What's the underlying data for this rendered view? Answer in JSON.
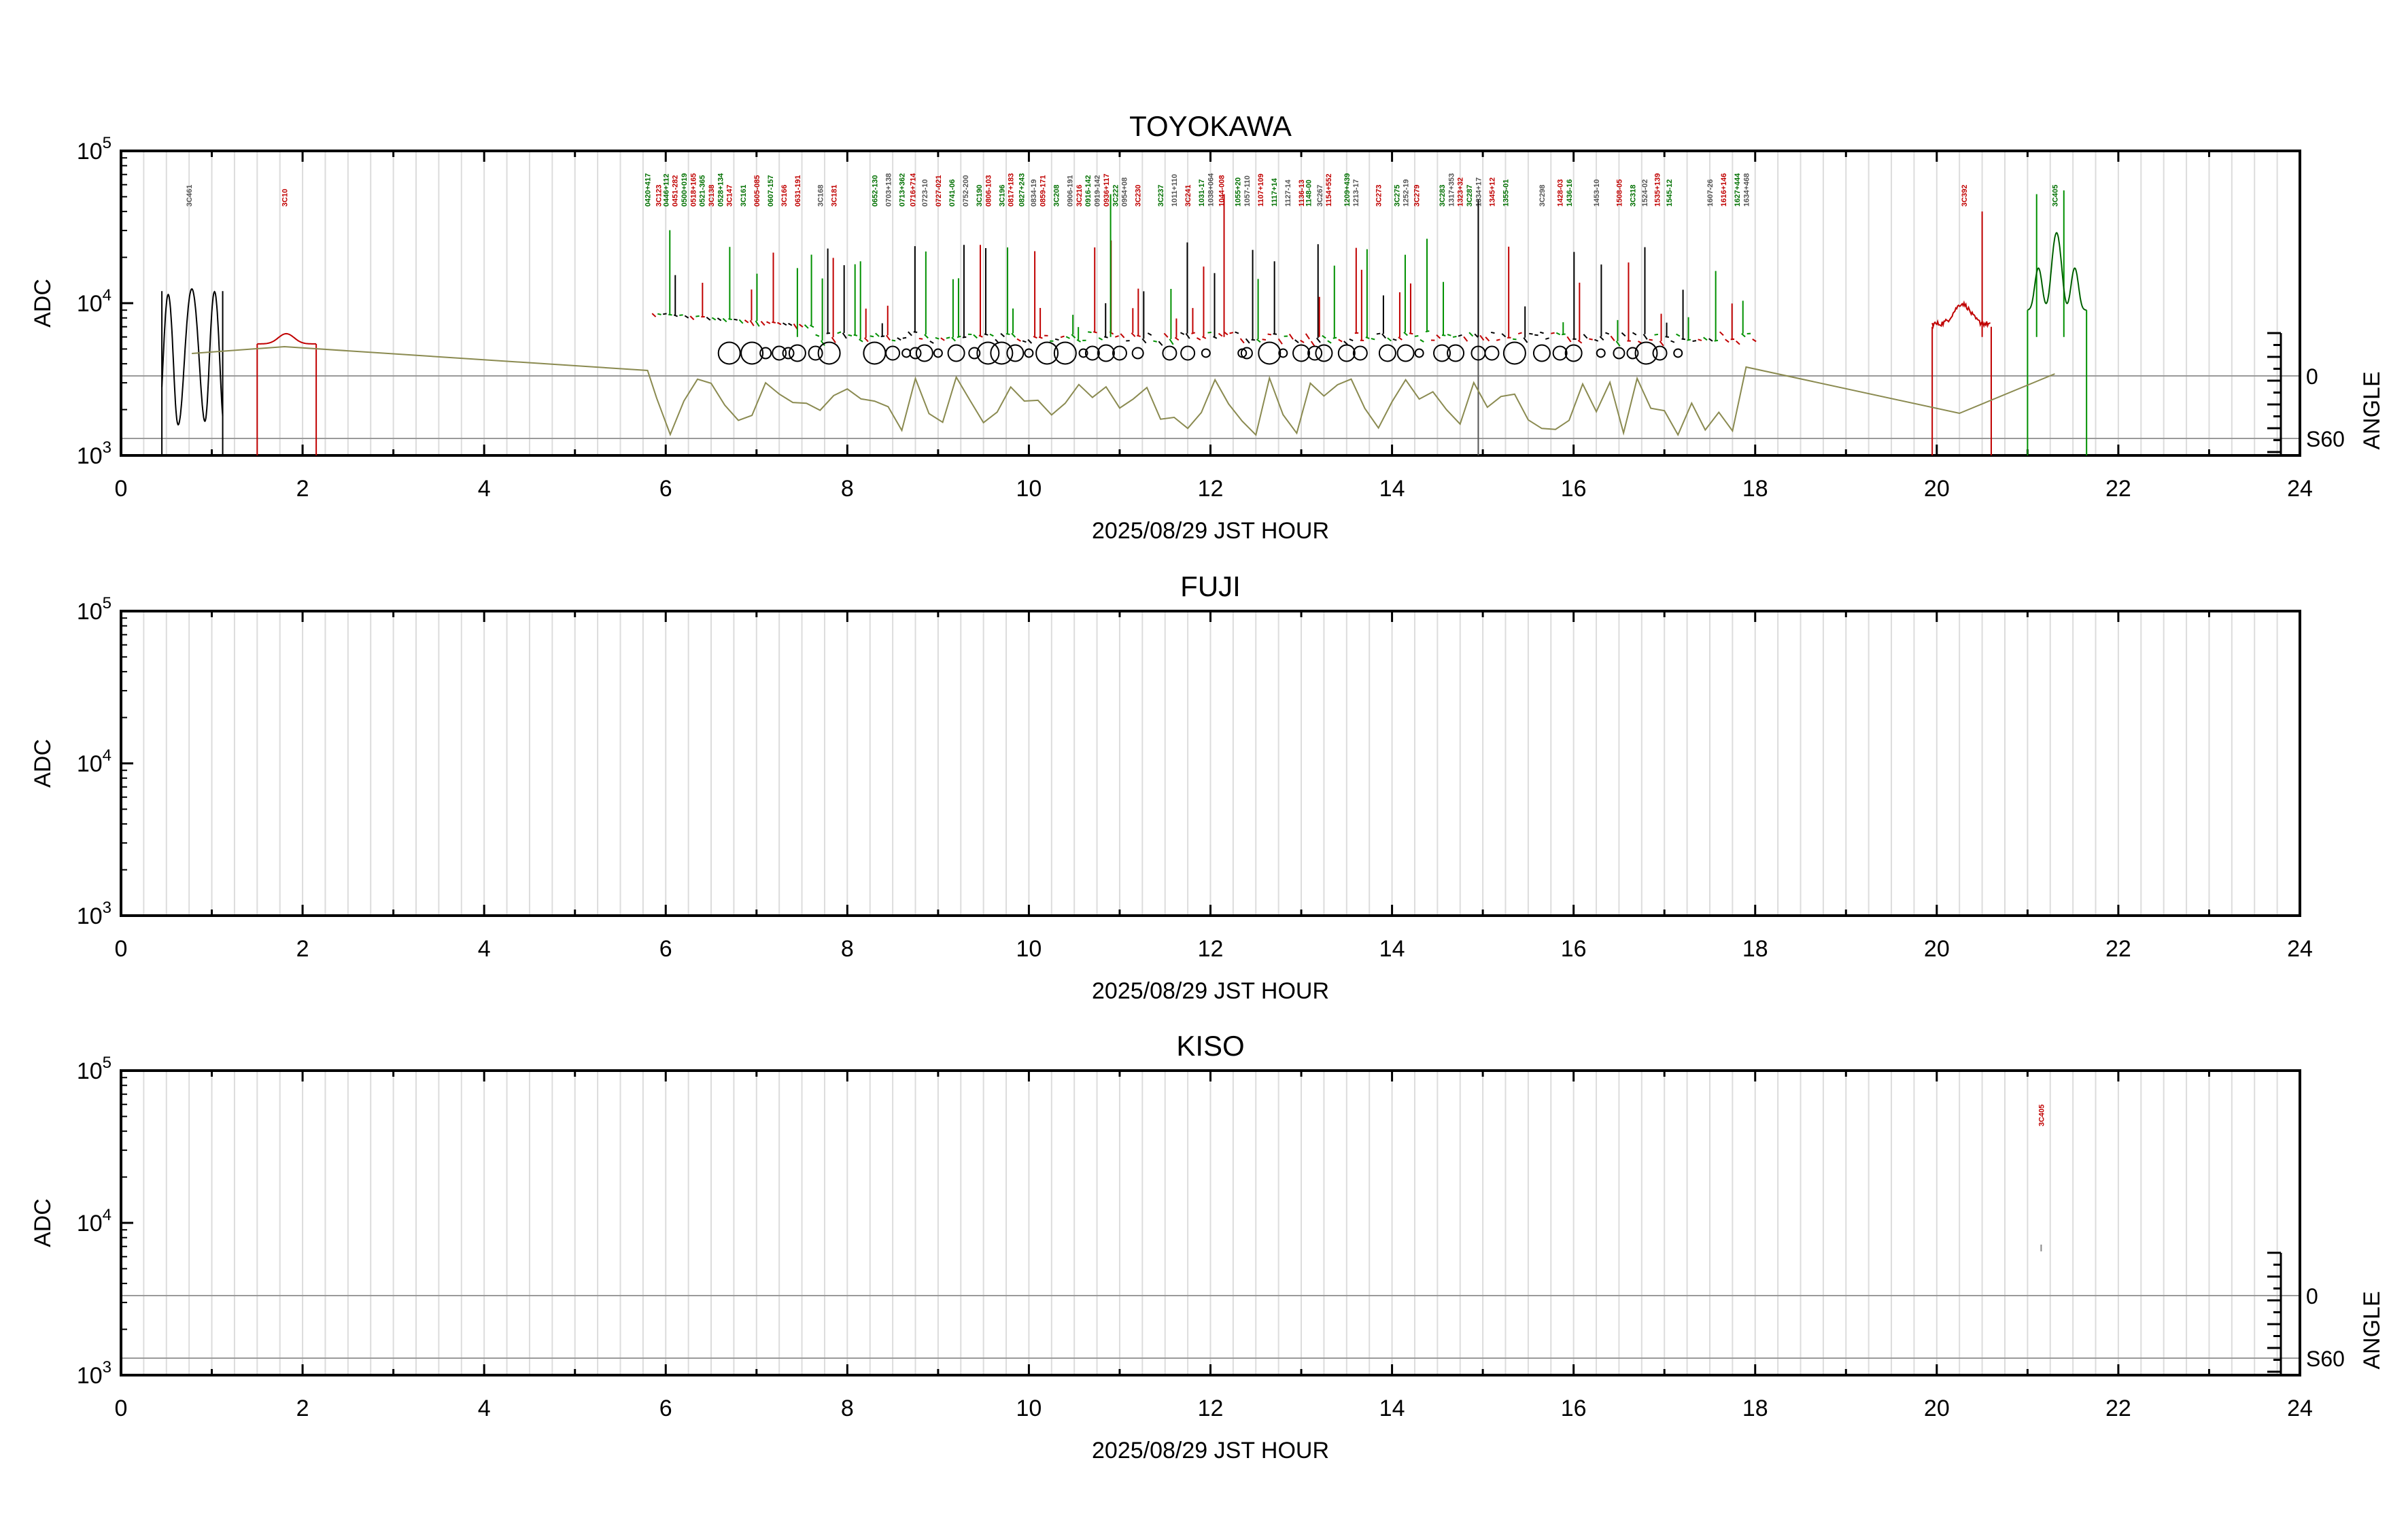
{
  "chart_data": [
    {
      "type": "line",
      "title": "TOYOKAWA",
      "xlabel": "2025/08/29 JST HOUR",
      "ylabel": "ADC",
      "right_label": "ANGLE",
      "right_ticks": [
        "0",
        "S60"
      ],
      "show_angle": true,
      "yscale": "log",
      "xlim": [
        0,
        24
      ],
      "ylim": [
        1000,
        100000
      ],
      "xticks": [
        "0",
        "2",
        "4",
        "6",
        "8",
        "10",
        "12",
        "14",
        "16",
        "18",
        "20",
        "22",
        "24"
      ],
      "yticks": [
        {
          "base": "10",
          "exp": "3"
        },
        {
          "base": "10",
          "exp": "4"
        },
        {
          "base": "10",
          "exp": "5"
        }
      ],
      "grid": true,
      "colors": {
        "trace": "#000000",
        "red": "#c00000",
        "green": "#009000",
        "angle": "#8a8a50"
      },
      "sources": [
        {
          "x": 0.75,
          "label": "3C461",
          "color": "#555555"
        },
        {
          "x": 1.8,
          "label": "3C10",
          "color": "#c00000"
        },
        {
          "x": 5.8,
          "label": "0420+417",
          "color": "#007000"
        },
        {
          "x": 5.92,
          "label": "3C123",
          "color": "#c00000"
        },
        {
          "x": 6.0,
          "label": "0446+112",
          "color": "#007000"
        },
        {
          "x": 6.1,
          "label": "0451-282",
          "color": "#c00000"
        },
        {
          "x": 6.2,
          "label": "0500+019",
          "color": "#007000"
        },
        {
          "x": 6.3,
          "label": "0518+165",
          "color": "#c00000"
        },
        {
          "x": 6.4,
          "label": "0521-365",
          "color": "#007000"
        },
        {
          "x": 6.5,
          "label": "3C138",
          "color": "#c00000"
        },
        {
          "x": 6.6,
          "label": "0528+134",
          "color": "#007000"
        },
        {
          "x": 6.7,
          "label": "3C147",
          "color": "#c00000"
        },
        {
          "x": 6.85,
          "label": "3C161",
          "color": "#007000"
        },
        {
          "x": 7.0,
          "label": "0605-085",
          "color": "#c00000"
        },
        {
          "x": 7.15,
          "label": "0607-157",
          "color": "#007000"
        },
        {
          "x": 7.3,
          "label": "3C166",
          "color": "#c00000"
        },
        {
          "x": 7.45,
          "label": "0631-191",
          "color": "#c00000"
        },
        {
          "x": 7.7,
          "label": "3C168",
          "color": "#555555"
        },
        {
          "x": 7.85,
          "label": "3C181",
          "color": "#c00000"
        },
        {
          "x": 8.3,
          "label": "0652-130",
          "color": "#007000"
        },
        {
          "x": 8.45,
          "label": "0703+138",
          "color": "#555555"
        },
        {
          "x": 8.6,
          "label": "0713+362",
          "color": "#007000"
        },
        {
          "x": 8.72,
          "label": "0716+714",
          "color": "#c00000"
        },
        {
          "x": 8.85,
          "label": "0723-10",
          "color": "#555555"
        },
        {
          "x": 9.0,
          "label": "0727-021",
          "color": "#c00000"
        },
        {
          "x": 9.15,
          "label": "0741-06",
          "color": "#007000"
        },
        {
          "x": 9.3,
          "label": "0752-200",
          "color": "#555555"
        },
        {
          "x": 9.45,
          "label": "3C190",
          "color": "#007000"
        },
        {
          "x": 9.55,
          "label": "0806-103",
          "color": "#c00000"
        },
        {
          "x": 9.7,
          "label": "3C196",
          "color": "#007000"
        },
        {
          "x": 9.8,
          "label": "0817+183",
          "color": "#c00000"
        },
        {
          "x": 9.92,
          "label": "0827+243",
          "color": "#007000"
        },
        {
          "x": 10.05,
          "label": "0834-19",
          "color": "#555555"
        },
        {
          "x": 10.15,
          "label": "0859-171",
          "color": "#c00000"
        },
        {
          "x": 10.3,
          "label": "3C208",
          "color": "#007000"
        },
        {
          "x": 10.45,
          "label": "0906-191",
          "color": "#555555"
        },
        {
          "x": 10.55,
          "label": "3C216",
          "color": "#c00000"
        },
        {
          "x": 10.65,
          "label": "0916-142",
          "color": "#007000"
        },
        {
          "x": 10.75,
          "label": "0919-142",
          "color": "#555555"
        },
        {
          "x": 10.85,
          "label": "0936+117",
          "color": "#c00000"
        },
        {
          "x": 10.95,
          "label": "3C222",
          "color": "#007000"
        },
        {
          "x": 11.05,
          "label": "0954+08",
          "color": "#555555"
        },
        {
          "x": 11.2,
          "label": "3C230",
          "color": "#c00000"
        },
        {
          "x": 11.45,
          "label": "3C237",
          "color": "#007000"
        },
        {
          "x": 11.6,
          "label": "1011+110",
          "color": "#555555"
        },
        {
          "x": 11.75,
          "label": "3C241",
          "color": "#c00000"
        },
        {
          "x": 11.9,
          "label": "1031-17",
          "color": "#007000"
        },
        {
          "x": 12.0,
          "label": "1038+064",
          "color": "#555555"
        },
        {
          "x": 12.12,
          "label": "1044-008",
          "color": "#c00000"
        },
        {
          "x": 12.3,
          "label": "1055+20",
          "color": "#007000"
        },
        {
          "x": 12.4,
          "label": "1057-110",
          "color": "#555555"
        },
        {
          "x": 12.55,
          "label": "1107+109",
          "color": "#c00000"
        },
        {
          "x": 12.7,
          "label": "1117+14",
          "color": "#007000"
        },
        {
          "x": 12.85,
          "label": "1127-14",
          "color": "#555555"
        },
        {
          "x": 13.0,
          "label": "1136-13",
          "color": "#c00000"
        },
        {
          "x": 13.08,
          "label": "1148-00",
          "color": "#007000"
        },
        {
          "x": 13.2,
          "label": "3C267",
          "color": "#555555"
        },
        {
          "x": 13.3,
          "label": "1154+552",
          "color": "#c00000"
        },
        {
          "x": 13.5,
          "label": "1209+439",
          "color": "#007000"
        },
        {
          "x": 13.6,
          "label": "1213-17",
          "color": "#555555"
        },
        {
          "x": 13.85,
          "label": "3C273",
          "color": "#c00000"
        },
        {
          "x": 14.05,
          "label": "3C275",
          "color": "#007000"
        },
        {
          "x": 14.15,
          "label": "1252-19",
          "color": "#555555"
        },
        {
          "x": 14.27,
          "label": "3C279",
          "color": "#c00000"
        },
        {
          "x": 14.55,
          "label": "3C283",
          "color": "#007000"
        },
        {
          "x": 14.65,
          "label": "1317+353",
          "color": "#555555"
        },
        {
          "x": 14.75,
          "label": "1323+32",
          "color": "#c00000"
        },
        {
          "x": 14.85,
          "label": "3C287",
          "color": "#007000"
        },
        {
          "x": 14.95,
          "label": "1334+17",
          "color": "#555555"
        },
        {
          "x": 15.1,
          "label": "1345+12",
          "color": "#c00000"
        },
        {
          "x": 15.25,
          "label": "1355-01",
          "color": "#007000"
        },
        {
          "x": 15.65,
          "label": "3C298",
          "color": "#555555"
        },
        {
          "x": 15.85,
          "label": "1428-03",
          "color": "#c00000"
        },
        {
          "x": 15.95,
          "label": "1436-16",
          "color": "#007000"
        },
        {
          "x": 16.25,
          "label": "1453-10",
          "color": "#555555"
        },
        {
          "x": 16.5,
          "label": "1508-05",
          "color": "#c00000"
        },
        {
          "x": 16.65,
          "label": "3C318",
          "color": "#007000"
        },
        {
          "x": 16.78,
          "label": "1524-02",
          "color": "#555555"
        },
        {
          "x": 16.92,
          "label": "1535+139",
          "color": "#c00000"
        },
        {
          "x": 17.05,
          "label": "1545-12",
          "color": "#007000"
        },
        {
          "x": 17.5,
          "label": "1607-26",
          "color": "#555555"
        },
        {
          "x": 17.65,
          "label": "1616+146",
          "color": "#c00000"
        },
        {
          "x": 17.8,
          "label": "1627+444",
          "color": "#007000"
        },
        {
          "x": 17.9,
          "label": "1634+468",
          "color": "#555555"
        },
        {
          "x": 20.3,
          "label": "3C392",
          "color": "#c00000"
        },
        {
          "x": 21.3,
          "label": "3C405",
          "color": "#007000"
        }
      ]
    },
    {
      "type": "line",
      "title": "FUJI",
      "xlabel": "2025/08/29 JST HOUR",
      "ylabel": "ADC",
      "right_label": "",
      "right_ticks": [],
      "show_angle": false,
      "yscale": "log",
      "xlim": [
        0,
        24
      ],
      "ylim": [
        1000,
        100000
      ],
      "xticks": [
        "0",
        "2",
        "4",
        "6",
        "8",
        "10",
        "12",
        "14",
        "16",
        "18",
        "20",
        "22",
        "24"
      ],
      "yticks": [
        {
          "base": "10",
          "exp": "3"
        },
        {
          "base": "10",
          "exp": "4"
        },
        {
          "base": "10",
          "exp": "5"
        }
      ],
      "grid": true,
      "sources": []
    },
    {
      "type": "line",
      "title": "KISO",
      "xlabel": "2025/08/29 JST HOUR",
      "ylabel": "ADC",
      "right_label": "ANGLE",
      "right_ticks": [
        "0",
        "S60"
      ],
      "show_angle": true,
      "yscale": "log",
      "xlim": [
        0,
        24
      ],
      "ylim": [
        1000,
        100000
      ],
      "xticks": [
        "0",
        "2",
        "4",
        "6",
        "8",
        "10",
        "12",
        "14",
        "16",
        "18",
        "20",
        "22",
        "24"
      ],
      "yticks": [
        {
          "base": "10",
          "exp": "3"
        },
        {
          "base": "10",
          "exp": "4"
        },
        {
          "base": "10",
          "exp": "5"
        }
      ],
      "grid": true,
      "sources": [
        {
          "x": 21.15,
          "label": "3C405",
          "color": "#c00000"
        }
      ]
    }
  ]
}
